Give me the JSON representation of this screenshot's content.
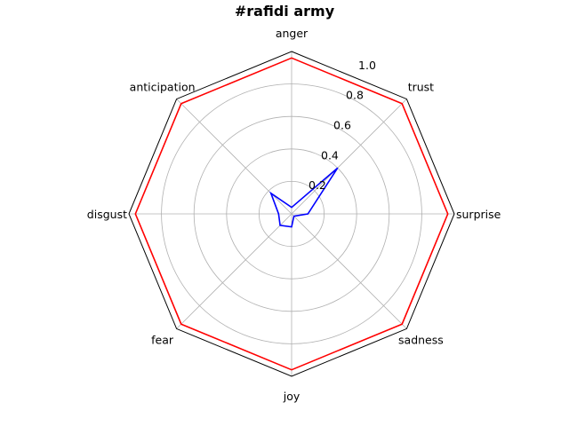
{
  "chart_data": {
    "type": "radar",
    "title": "#rafidi army",
    "axes": [
      "anger",
      "trust",
      "surprise",
      "sadness",
      "joy",
      "fear",
      "disgust",
      "anticipation"
    ],
    "rmax": 1.0,
    "ticks": [
      0.2,
      0.4,
      0.6,
      0.8,
      1.0
    ],
    "tick_labels": [
      "0.2",
      "0.4",
      "0.6",
      "0.8",
      "1.0"
    ],
    "grid": true,
    "series": [
      {
        "values": [
          0.96,
          0.96,
          0.96,
          0.96,
          0.96,
          0.96,
          0.96,
          0.96
        ],
        "color": "#ff0000"
      },
      {
        "values": [
          0.04,
          0.4,
          0.1,
          0.02,
          0.08,
          0.1,
          0.08,
          0.18
        ],
        "color": "#0000ff"
      }
    ]
  }
}
